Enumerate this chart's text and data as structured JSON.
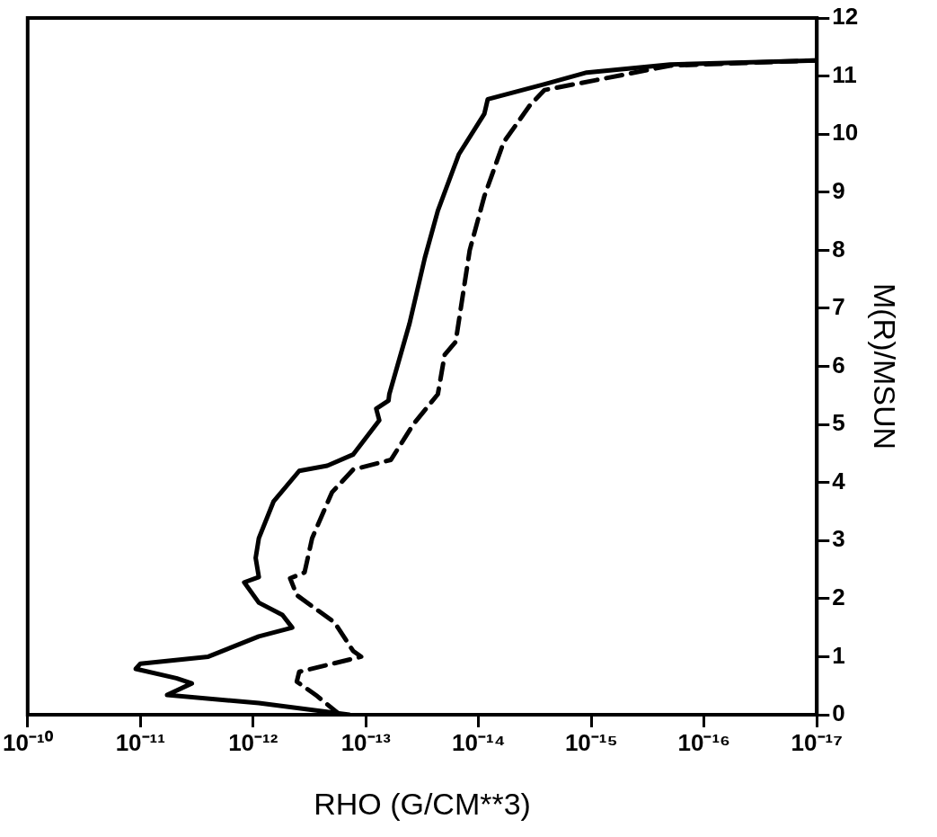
{
  "chart_data": {
    "type": "line",
    "xlabel": "RHO (G/CM**3)",
    "ylabel": "M(R)/MSUN",
    "log": "x",
    "grid": false,
    "legend": false,
    "marker": "none",
    "xlim": [
      1e-10,
      1e-17
    ],
    "xticks": [
      {
        "value": 1e-10,
        "label": "10⁻¹⁰"
      },
      {
        "value": 1e-11,
        "label": "10⁻¹¹"
      },
      {
        "value": 1e-12,
        "label": "10⁻¹²"
      },
      {
        "value": 1e-13,
        "label": "10⁻¹³"
      },
      {
        "value": 1e-14,
        "label": "10⁻¹⁴"
      },
      {
        "value": 1e-15,
        "label": "10⁻¹⁵"
      },
      {
        "value": 1e-16,
        "label": "10⁻¹⁶"
      },
      {
        "value": 1e-17,
        "label": "10⁻¹⁷"
      }
    ],
    "ylim": [
      0,
      12
    ],
    "yticks": [
      0,
      1,
      2,
      3,
      4,
      5,
      6,
      7,
      8,
      9,
      10,
      11,
      12
    ],
    "series": [
      {
        "color": "#000000",
        "line_style": "solid",
        "x": [
          1.4e-13,
          8.9e-13,
          5.8e-12,
          3.5e-12,
          4.8e-12,
          1.1e-11,
          1e-11,
          2.5e-12,
          8.9e-13,
          4.5e-13,
          5.5e-13,
          8.9e-13,
          1.2e-12,
          8.9e-13,
          9.5e-13,
          8.9e-13,
          6.6e-13,
          3.9e-13,
          2.2e-13,
          1.3e-13,
          7.6e-14,
          8.1e-14,
          6.3e-14,
          6.2e-14,
          4.1e-14,
          3e-14,
          2.3e-14,
          1.5e-14,
          8.9e-15,
          8.3e-15,
          2.6e-15,
          1.1e-15,
          2e-16,
          1e-17
        ],
        "values": [
          0,
          0.2,
          0.34,
          0.54,
          0.63,
          0.79,
          0.88,
          1.0,
          1.35,
          1.5,
          1.72,
          1.93,
          2.28,
          2.37,
          2.7,
          3.04,
          3.67,
          4.2,
          4.29,
          4.48,
          5.07,
          5.27,
          5.41,
          5.52,
          6.74,
          7.87,
          8.68,
          9.65,
          10.35,
          10.6,
          10.86,
          11.06,
          11.2,
          11.27
        ]
      },
      {
        "color": "#000000",
        "line_style": "dashed",
        "x": [
          1.7e-13,
          2.7e-13,
          4.1e-13,
          3.9e-13,
          1.7e-13,
          1.1e-13,
          1.3e-13,
          1.9e-13,
          4.1e-13,
          4.7e-13,
          3.5e-13,
          3e-13,
          2e-13,
          1.3e-13,
          6e-14,
          3.8e-14,
          2.3e-14,
          2e-14,
          1.6e-14,
          1.2e-14,
          8.9e-15,
          6e-15,
          3.5e-15,
          2.6e-15,
          9.1e-16,
          2e-16,
          1e-17
        ],
        "values": [
          0,
          0.32,
          0.57,
          0.74,
          0.91,
          1.0,
          1.1,
          1.59,
          2.06,
          2.35,
          2.45,
          3.04,
          3.83,
          4.22,
          4.39,
          5.0,
          5.52,
          6.2,
          6.42,
          8.0,
          8.93,
          9.86,
          10.5,
          10.76,
          10.93,
          11.18,
          11.27
        ]
      }
    ]
  }
}
